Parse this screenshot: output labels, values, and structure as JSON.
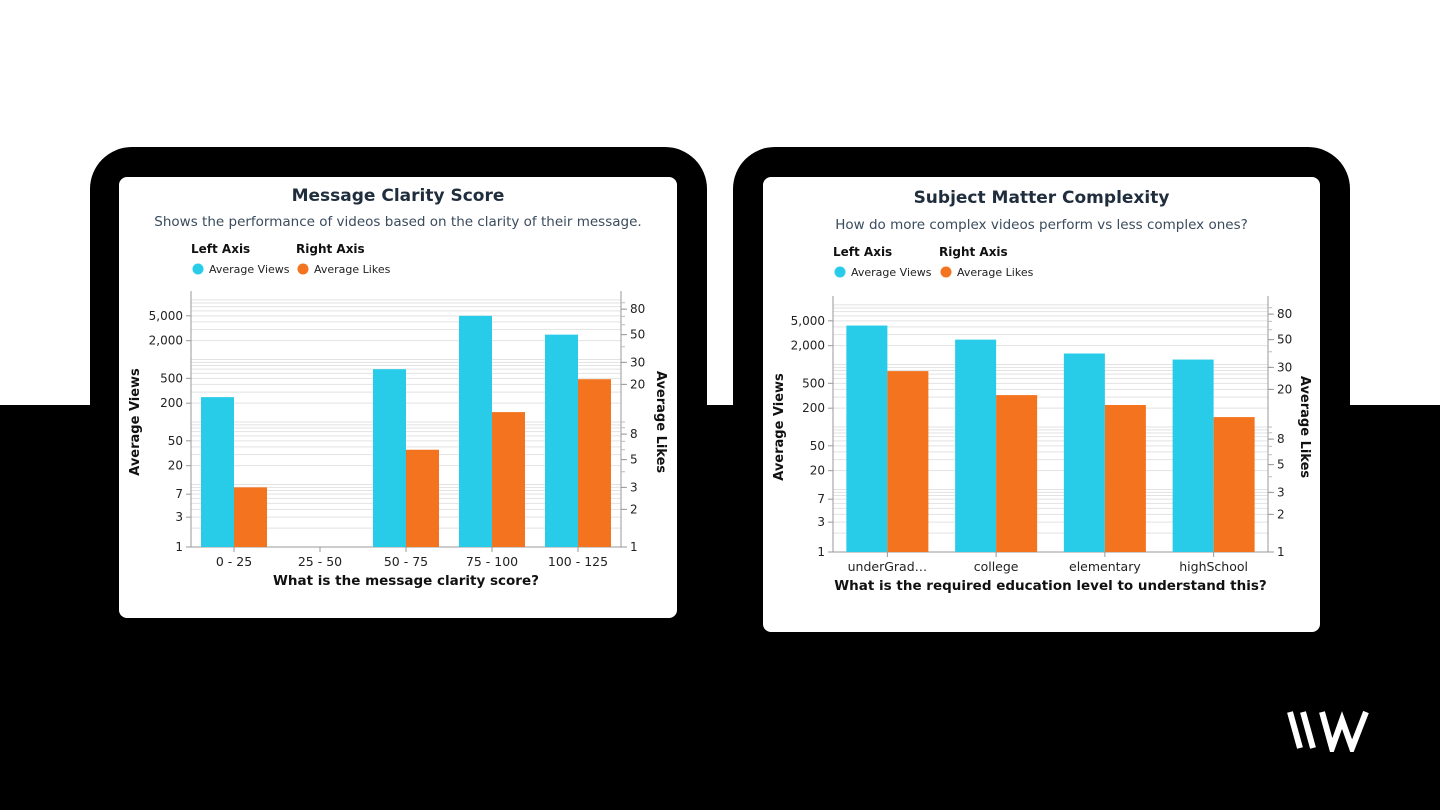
{
  "brand": {
    "logo_text": "\\\\W"
  },
  "colors": {
    "views": "#29cce8",
    "likes": "#f4731f"
  },
  "legend": {
    "left_axis_title": "Left Axis",
    "right_axis_title": "Right Axis",
    "views_label": "Average Views",
    "likes_label": "Average Likes"
  },
  "charts": [
    {
      "title": "Message Clarity Score",
      "subtitle": "Shows the performance of videos based on the clarity of their message."
    },
    {
      "title": "Subject Matter Complexity",
      "subtitle": "How do more complex videos perform vs less complex ones?"
    }
  ],
  "chart_data": [
    {
      "type": "bar",
      "title": "Message Clarity Score",
      "subtitle": "Shows the performance of videos based on the clarity of their message.",
      "xlabel": "What is the message clarity score?",
      "ylabel": "Average Views",
      "y2label": "Average Likes",
      "yscale": "log",
      "ylim": [
        1,
        10000
      ],
      "y2lim": [
        1,
        100
      ],
      "yticks": [
        "1",
        "3",
        "7",
        "20",
        "50",
        "200",
        "500",
        "2,000",
        "5,000"
      ],
      "y2ticks": [
        "1",
        "2",
        "3",
        "5",
        "8",
        "20",
        "30",
        "50",
        "80"
      ],
      "categories": [
        "0 - 25",
        "25 - 50",
        "50 - 75",
        "75 - 100",
        "100 - 125"
      ],
      "series": [
        {
          "name": "Average Views",
          "axis": "left",
          "values": [
            250,
            null,
            700,
            5000,
            2500
          ]
        },
        {
          "name": "Average Likes",
          "axis": "right",
          "values": [
            3,
            null,
            6,
            12,
            22
          ]
        }
      ]
    },
    {
      "type": "bar",
      "title": "Subject Matter Complexity",
      "subtitle": "How do more complex videos perform vs less complex ones?",
      "xlabel": "What is the required education level to understand this?",
      "ylabel": "Average Views",
      "y2label": "Average Likes",
      "yscale": "log",
      "ylim": [
        1,
        10000
      ],
      "y2lim": [
        1,
        100
      ],
      "yticks": [
        "1",
        "3",
        "7",
        "20",
        "50",
        "200",
        "500",
        "2,000",
        "5,000"
      ],
      "y2ticks": [
        "1",
        "2",
        "3",
        "5",
        "8",
        "20",
        "30",
        "50",
        "80"
      ],
      "categories": [
        "underGrad…",
        "college",
        "elementary",
        "highSchool"
      ],
      "series": [
        {
          "name": "Average Views",
          "axis": "left",
          "values": [
            4200,
            2500,
            1500,
            1200
          ]
        },
        {
          "name": "Average Likes",
          "axis": "right",
          "values": [
            28,
            18,
            15,
            12
          ]
        }
      ]
    }
  ]
}
